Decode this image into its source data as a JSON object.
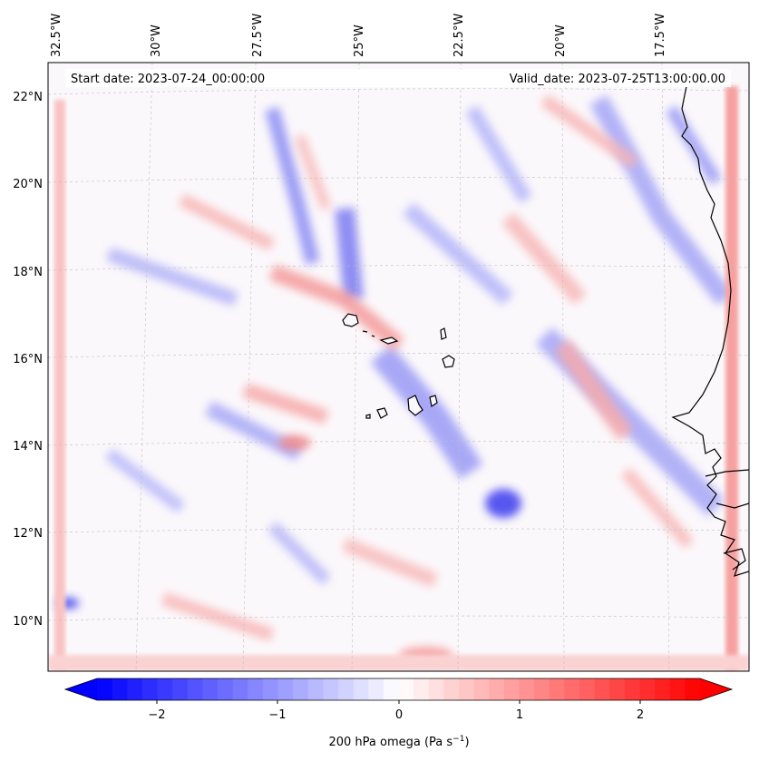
{
  "header": {
    "start_date": "Start date: 2023-07-24_00:00:00",
    "valid_date": "Valid_date: 2023-07-25T13:00:00.00"
  },
  "map": {
    "projection": "lambert-conformal",
    "lon_labels": [
      "32.5°W",
      "30°W",
      "27.5°W",
      "25°W",
      "22.5°W",
      "20°W",
      "17.5°W"
    ],
    "lat_labels": [
      "22°N",
      "20°N",
      "18°N",
      "16°N",
      "14°N",
      "12°N",
      "10°N"
    ],
    "gridlines": true,
    "coastline_color": "#000000"
  },
  "colorbar": {
    "label_main": "200 hPa omega (Pa s",
    "label_sup": "−1",
    "label_close": ")",
    "ticks": [
      "−2",
      "−1",
      "0",
      "1",
      "2"
    ],
    "range": [
      -2.7,
      2.7
    ],
    "extend": "both",
    "colors": {
      "low": "#0000ff",
      "mid": "#ffffff",
      "high": "#ff0000"
    }
  }
}
